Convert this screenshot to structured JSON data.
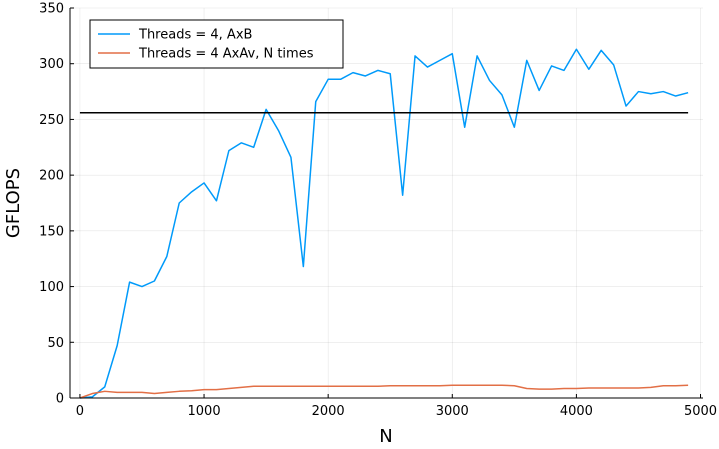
{
  "chart_data": {
    "type": "line",
    "xlabel": "N",
    "ylabel": "GFLOPS",
    "xlim": [
      -80,
      5020
    ],
    "ylim": [
      0,
      350
    ],
    "xticks": [
      0,
      1000,
      2000,
      3000,
      4000,
      5000
    ],
    "yticks": [
      0,
      50,
      100,
      150,
      200,
      250,
      300,
      350
    ],
    "xtick_labels": [
      "0",
      "1000",
      "2000",
      "3000",
      "4000",
      "5000"
    ],
    "ytick_labels": [
      "0",
      "50",
      "100",
      "150",
      "200",
      "250",
      "300",
      "350"
    ],
    "grid": true,
    "legend_position": "top-left",
    "series": [
      {
        "name": "Threads = 4, AxB",
        "color": "#009AFA",
        "x": [
          0,
          100,
          200,
          300,
          400,
          500,
          600,
          700,
          800,
          900,
          1000,
          1100,
          1200,
          1300,
          1400,
          1500,
          1600,
          1700,
          1800,
          1900,
          2000,
          2100,
          2200,
          2300,
          2400,
          2500,
          2600,
          2700,
          2800,
          2900,
          3000,
          3100,
          3200,
          3300,
          3400,
          3500,
          3600,
          3700,
          3800,
          3900,
          4000,
          4100,
          4200,
          4300,
          4400,
          4500,
          4600,
          4700,
          4800,
          4900
        ],
        "y": [
          0,
          1,
          10,
          47,
          104,
          100,
          105,
          127,
          175,
          185,
          193,
          177,
          222,
          229,
          225,
          259,
          240,
          216,
          118,
          266,
          286,
          286,
          292,
          289,
          294,
          291,
          182,
          307,
          297,
          303,
          309,
          243,
          307,
          285,
          272,
          243,
          303,
          276,
          298,
          294,
          313,
          295,
          312,
          299,
          262,
          275,
          273,
          275,
          271,
          274
        ]
      },
      {
        "name": "Threads = 4 AxAv, N times",
        "color": "#E26F46",
        "x": [
          0,
          100,
          200,
          300,
          400,
          500,
          600,
          700,
          800,
          900,
          1000,
          1100,
          1200,
          1300,
          1400,
          1500,
          1600,
          1700,
          1800,
          1900,
          2000,
          2100,
          2200,
          2300,
          2400,
          2500,
          2600,
          2700,
          2800,
          2900,
          3000,
          3100,
          3200,
          3300,
          3400,
          3500,
          3600,
          3700,
          3800,
          3900,
          4000,
          4100,
          4200,
          4300,
          4400,
          4500,
          4600,
          4700,
          4800,
          4900
        ],
        "y": [
          0,
          4,
          6,
          5,
          5,
          5,
          4,
          5,
          6,
          6.5,
          7.5,
          7.5,
          8.5,
          9.5,
          10.5,
          10.5,
          10.5,
          10.5,
          10.5,
          10.5,
          10.5,
          10.5,
          10.5,
          10.5,
          10.5,
          11,
          11,
          11,
          11,
          11,
          11.5,
          11.5,
          11.5,
          11.5,
          11.5,
          11,
          8.5,
          8,
          8,
          8.5,
          8.5,
          9,
          9,
          9,
          9,
          9,
          9.5,
          11,
          11,
          11.5
        ]
      },
      {
        "name": "",
        "color": "#000000",
        "x": [
          0,
          4900
        ],
        "y": [
          256,
          256
        ]
      }
    ]
  }
}
